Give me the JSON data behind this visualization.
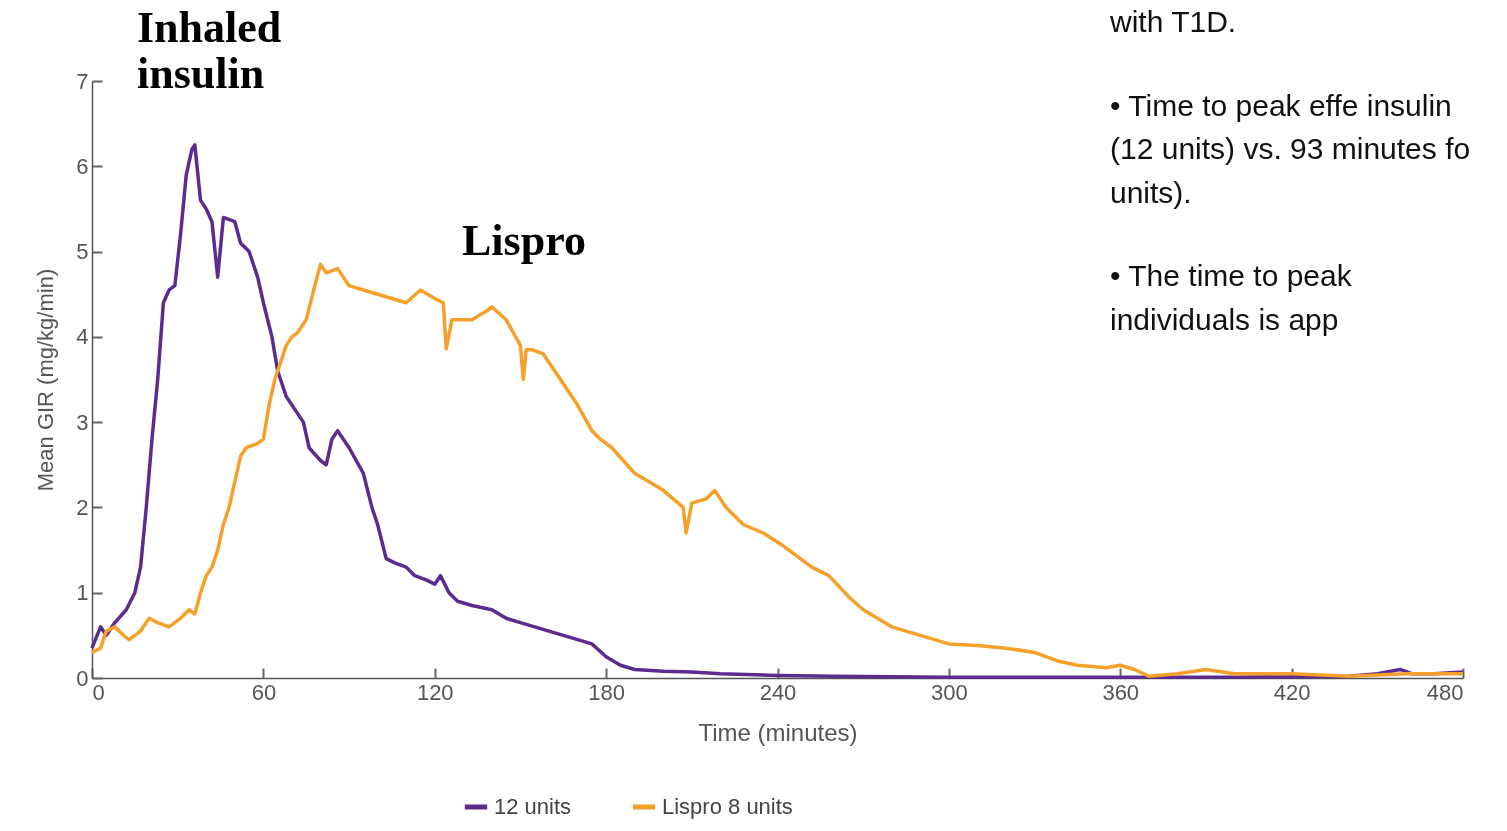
{
  "chart_data": {
    "type": "line",
    "xlabel": "Time (minutes)",
    "ylabel": "Mean GIR (mg/kg/min)",
    "xlim": [
      0,
      480
    ],
    "xticks": [
      0,
      60,
      120,
      180,
      240,
      300,
      360,
      420,
      480
    ],
    "ylim": [
      0,
      7
    ],
    "yticks": [
      0,
      1,
      2,
      3,
      4,
      5,
      6,
      7
    ],
    "legend": "bottom",
    "line_style": "solid",
    "annotations": [
      "Inhaled insulin",
      "Lispro",
      "with T1D.",
      "•  Time to peak effe insulin (12 units) vs. 93 minutes fo units).",
      "•  The time to peak individuals is app"
    ],
    "series": [
      {
        "name": "12 units",
        "color": "#5b2c8e",
        "x": [
          0,
          3,
          5,
          8,
          12,
          15,
          17,
          19,
          21,
          23,
          25,
          27,
          29,
          31,
          33,
          35,
          36,
          38,
          40,
          42,
          44,
          46,
          50,
          52,
          55,
          58,
          60,
          63,
          65,
          68,
          72,
          74,
          76,
          80,
          82,
          84,
          86,
          90,
          95,
          98,
          100,
          103,
          106,
          110,
          113,
          117,
          120,
          122,
          125,
          128,
          133,
          140,
          145,
          150,
          160,
          170,
          175,
          180,
          185,
          190,
          200,
          210,
          220,
          240,
          260,
          300,
          360,
          400,
          440,
          450,
          458,
          462,
          470,
          480
        ],
        "values": [
          0.35,
          0.6,
          0.5,
          0.65,
          0.8,
          1.0,
          1.3,
          2.0,
          2.8,
          3.5,
          4.4,
          4.55,
          4.6,
          5.2,
          5.9,
          6.2,
          6.25,
          5.6,
          5.5,
          5.35,
          4.7,
          5.4,
          5.35,
          5.1,
          5.0,
          4.7,
          4.4,
          4.0,
          3.6,
          3.3,
          3.1,
          3.0,
          2.7,
          2.55,
          2.5,
          2.8,
          2.9,
          2.7,
          2.4,
          2.0,
          1.8,
          1.4,
          1.35,
          1.3,
          1.2,
          1.15,
          1.1,
          1.2,
          1.0,
          0.9,
          0.85,
          0.8,
          0.7,
          0.65,
          0.55,
          0.45,
          0.4,
          0.25,
          0.15,
          0.1,
          0.08,
          0.07,
          0.05,
          0.03,
          0.02,
          0.01,
          0.01,
          0.01,
          0.02,
          0.05,
          0.1,
          0.05,
          0.05,
          0.07
        ]
      },
      {
        "name": "Lispro 8 units",
        "color": "#f5a02a",
        "x": [
          0,
          3,
          5,
          8,
          11,
          13,
          17,
          20,
          23,
          27,
          31,
          34,
          36,
          38,
          40,
          42,
          44,
          46,
          48,
          50,
          52,
          54,
          58,
          60,
          62,
          64,
          66,
          68,
          70,
          72,
          75,
          78,
          80,
          82,
          86,
          90,
          95,
          100,
          105,
          110,
          115,
          120,
          123,
          124,
          126,
          128,
          133,
          138,
          140,
          145,
          150,
          151,
          152,
          154,
          158,
          162,
          166,
          170,
          175,
          178,
          182,
          190,
          200,
          207,
          208,
          210,
          215,
          218,
          222,
          228,
          235,
          242,
          248,
          252,
          258,
          265,
          270,
          275,
          280,
          290,
          300,
          310,
          320,
          330,
          338,
          345,
          355,
          360,
          365,
          370,
          380,
          390,
          400,
          420,
          440,
          460,
          480
        ],
        "values": [
          0.3,
          0.35,
          0.55,
          0.6,
          0.5,
          0.45,
          0.55,
          0.7,
          0.65,
          0.6,
          0.7,
          0.8,
          0.75,
          1.0,
          1.2,
          1.3,
          1.5,
          1.8,
          2.0,
          2.3,
          2.6,
          2.7,
          2.75,
          2.8,
          3.2,
          3.5,
          3.7,
          3.9,
          4.0,
          4.05,
          4.2,
          4.6,
          4.85,
          4.75,
          4.8,
          4.6,
          4.55,
          4.5,
          4.45,
          4.4,
          4.55,
          4.45,
          4.4,
          3.86,
          4.2,
          4.2,
          4.2,
          4.3,
          4.35,
          4.2,
          3.9,
          3.5,
          3.85,
          3.85,
          3.8,
          3.6,
          3.4,
          3.2,
          2.9,
          2.8,
          2.7,
          2.4,
          2.2,
          2.0,
          1.7,
          2.05,
          2.1,
          2.2,
          2.0,
          1.8,
          1.7,
          1.55,
          1.4,
          1.3,
          1.2,
          0.95,
          0.8,
          0.7,
          0.6,
          0.5,
          0.4,
          0.38,
          0.35,
          0.3,
          0.2,
          0.15,
          0.12,
          0.15,
          0.1,
          0.02,
          0.05,
          0.1,
          0.05,
          0.05,
          0.02,
          0.05,
          0.05
        ]
      }
    ]
  }
}
